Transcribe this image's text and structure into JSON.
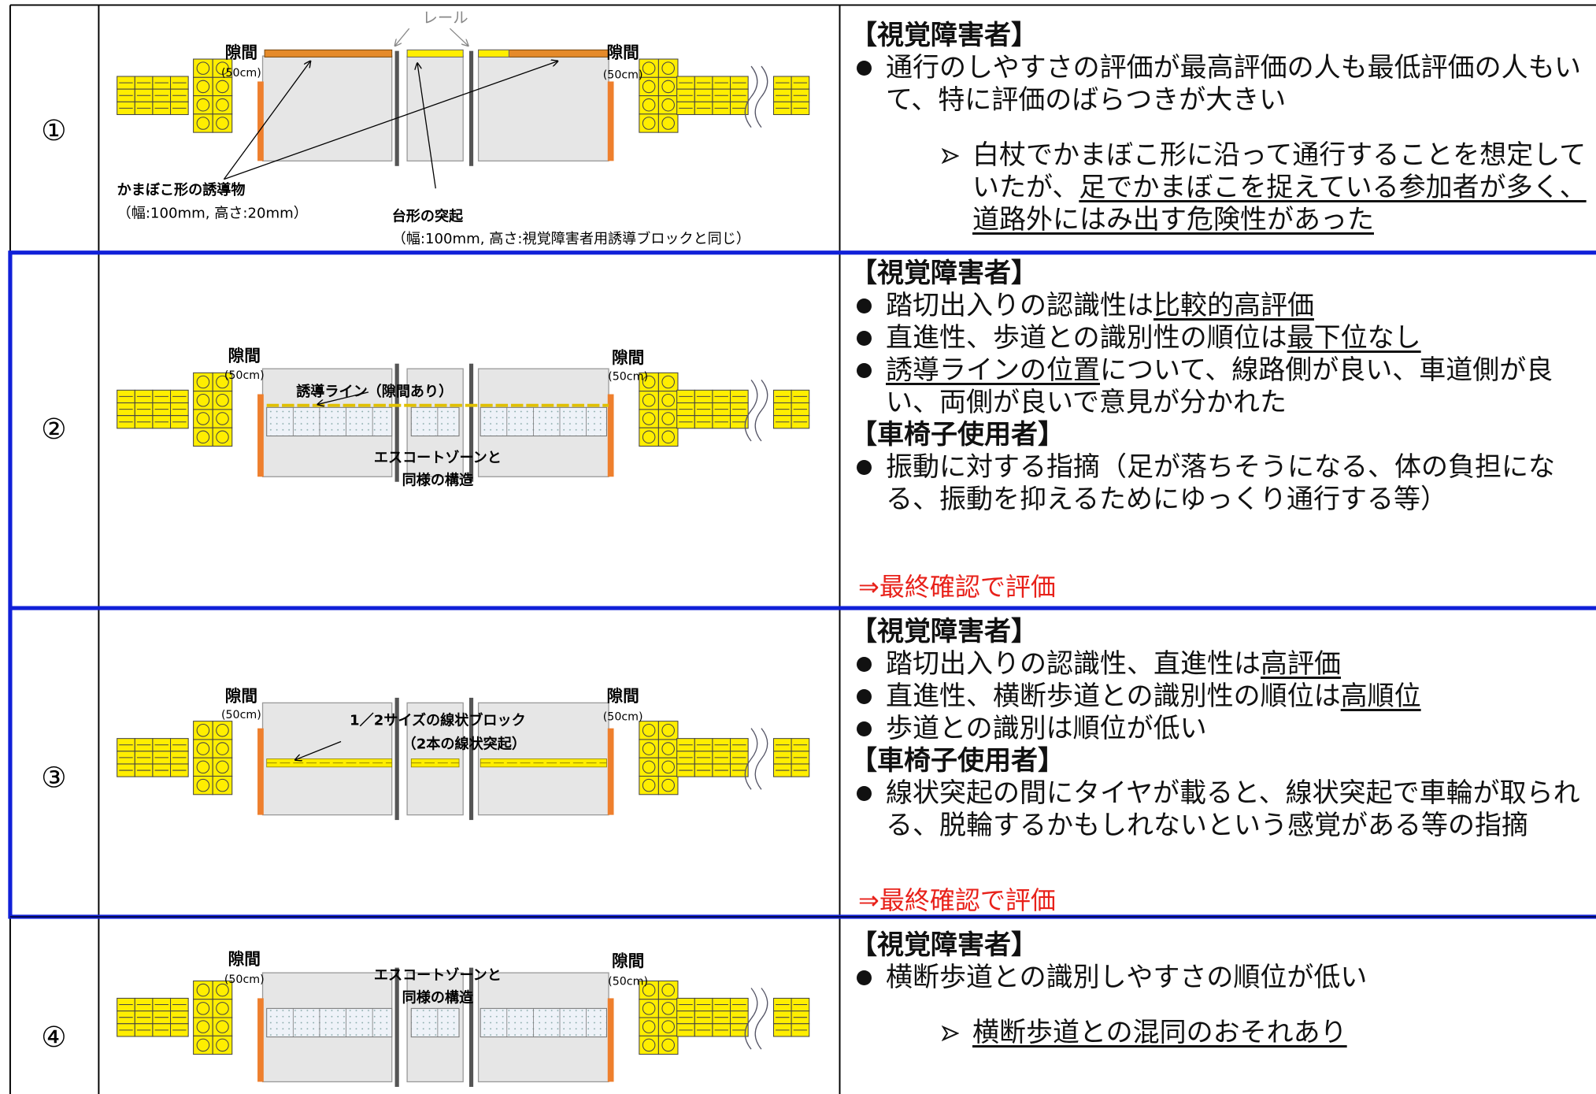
{
  "rows": [
    {
      "number": "①",
      "diagram": {
        "labels": [
          "隙間",
          "(50cm)",
          "隙間",
          "(50cm)",
          "レール",
          "かまぼこ形の誘導物",
          "（幅:100mm, 高さ:20mm）",
          "台形の突起",
          "（幅:100mm, 高さ:視覚障害者用誘導ブロックと同じ）"
        ]
      },
      "notes": [
        {
          "kind": "heading",
          "segments": [
            {
              "text": "【視覚障害者】"
            }
          ]
        },
        {
          "kind": "bullet",
          "segments": [
            {
              "text": "通行のしやすさの評価が最高評価の人も最低評価の人もいて、特に評価のばらつきが大きい"
            }
          ]
        },
        {
          "kind": "sub",
          "segments": [
            {
              "text": "白杖でかまぼこ形に沿って通行することを想定していたが、"
            },
            {
              "text": "足でかまぼこを捉えている参加者が多く、道路外にはみ出す危険性があった",
              "underline": true
            }
          ]
        }
      ]
    },
    {
      "number": "②",
      "diagram": {
        "labels": [
          "隙間",
          "(50cm)",
          "隙間",
          "(50cm)",
          "誘導ライン（隙間あり）",
          "エスコートゾーンと",
          "同様の構造"
        ]
      },
      "notes": [
        {
          "kind": "heading",
          "segments": [
            {
              "text": "【視覚障害者】"
            }
          ]
        },
        {
          "kind": "bullet",
          "segments": [
            {
              "text": "踏切出入りの認識性は"
            },
            {
              "text": "比較的高評価",
              "underline": true
            }
          ]
        },
        {
          "kind": "bullet",
          "segments": [
            {
              "text": "直進性、歩道との識別性の順位は"
            },
            {
              "text": "最下位なし",
              "underline": true
            }
          ]
        },
        {
          "kind": "bullet",
          "segments": [
            {
              "text": "誘導ラインの位置",
              "underline": true
            },
            {
              "text": "について、線路側が良い、車道側が良い、両側が良いで意見が分かれた"
            }
          ]
        },
        {
          "kind": "heading",
          "segments": [
            {
              "text": "【車椅子使用者】"
            }
          ]
        },
        {
          "kind": "bullet",
          "segments": [
            {
              "text": "振動に対する指摘（足が落ちそうになる、体の負担になる、振動を抑えるためにゆっくり通行する等）"
            }
          ]
        }
      ],
      "conclusion": "⇒最終確認で評価"
    },
    {
      "number": "③",
      "diagram": {
        "labels": [
          "隙間",
          "(50cm)",
          "隙間",
          "(50cm)",
          "1／2サイズの線状ブロック",
          "（2本の線状突起）"
        ]
      },
      "notes": [
        {
          "kind": "heading",
          "segments": [
            {
              "text": "【視覚障害者】"
            }
          ]
        },
        {
          "kind": "bullet",
          "segments": [
            {
              "text": "踏切出入りの認識性、直進性は"
            },
            {
              "text": "高評価",
              "underline": true
            }
          ]
        },
        {
          "kind": "bullet",
          "segments": [
            {
              "text": "直進性、横断歩道との識別性の順位は"
            },
            {
              "text": "高順位",
              "underline": true
            }
          ]
        },
        {
          "kind": "bullet",
          "segments": [
            {
              "text": "歩道との識別は順位が低い"
            }
          ]
        },
        {
          "kind": "heading",
          "segments": [
            {
              "text": "【車椅子使用者】"
            }
          ]
        },
        {
          "kind": "bullet",
          "segments": [
            {
              "text": "線状突起の間にタイヤが載ると、線状突起で車輪が取られる、脱輪するかもしれないという感覚がある等の指摘"
            }
          ]
        }
      ],
      "conclusion": "⇒最終確認で評価"
    },
    {
      "number": "④",
      "diagram": {
        "labels": [
          "隙間",
          "(50cm)",
          "隙間",
          "(50cm)",
          "エスコートゾーンと",
          "同様の構造"
        ]
      },
      "notes": [
        {
          "kind": "heading",
          "segments": [
            {
              "text": "【視覚障害者】"
            }
          ]
        },
        {
          "kind": "bullet",
          "segments": [
            {
              "text": "横断歩道との識別しやすさの順位が低い"
            }
          ]
        },
        {
          "kind": "sub",
          "segments": [
            {
              "text": "横断歩道との混同のおそれあり",
              "underline": true
            }
          ]
        }
      ]
    }
  ]
}
